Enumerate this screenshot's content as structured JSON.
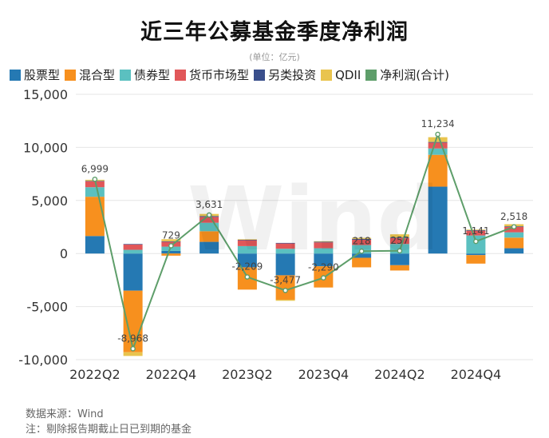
{
  "title": "近三年公募基金季度净利润",
  "subtitle": "(单位：亿元)",
  "source": "数据来源：Wind",
  "note": "注：剔除报告期截止日已到期的基金",
  "watermark": "Wind",
  "chart_data": {
    "type": "bar",
    "stacked": true,
    "title": "近三年公募基金季度净利润",
    "ylabel": "亿元",
    "ylim": [
      -10000,
      15000
    ],
    "yticks": [
      -10000,
      -5000,
      0,
      5000,
      10000,
      15000
    ],
    "ytick_labels": [
      "-10,000",
      "-5,000",
      "0",
      "5,000",
      "10,000",
      "15,000"
    ],
    "categories": [
      "2022Q2",
      "2022Q3",
      "2022Q4",
      "2023Q1",
      "2023Q2",
      "2023Q3",
      "2023Q4",
      "2024Q1",
      "2024Q2",
      "2024Q3",
      "2024Q4",
      "2025Q1"
    ],
    "xtick_labels": [
      "2022Q2",
      "2022Q4",
      "2023Q2",
      "2023Q4",
      "2024Q2",
      "2024Q4"
    ],
    "xtick_index": [
      0,
      2,
      4,
      6,
      8,
      10
    ],
    "legend_position": "top",
    "series": [
      {
        "name": "股票型",
        "color": "#2579b3",
        "values": [
          1650,
          -3500,
          250,
          1100,
          -1300,
          -2050,
          -1200,
          -400,
          -1100,
          6300,
          -150,
          500
        ]
      },
      {
        "name": "混合型",
        "color": "#f7901e",
        "values": [
          3700,
          -5800,
          -200,
          1000,
          -2100,
          -2300,
          -2000,
          -900,
          -500,
          3000,
          -800,
          1000
        ]
      },
      {
        "name": "债券型",
        "color": "#5bc0c0",
        "values": [
          900,
          350,
          400,
          800,
          700,
          450,
          500,
          800,
          900,
          600,
          1700,
          500
        ]
      },
      {
        "name": "货币市场型",
        "color": "#e15759",
        "values": [
          550,
          500,
          450,
          550,
          550,
          500,
          550,
          500,
          550,
          550,
          450,
          500
        ]
      },
      {
        "name": "另类投资",
        "color": "#3a4f8c",
        "values": [
          50,
          50,
          50,
          80,
          50,
          50,
          60,
          80,
          60,
          60,
          60,
          60
        ]
      },
      {
        "name": "QDII",
        "color": "#e9c44e",
        "values": [
          100,
          -350,
          200,
          200,
          50,
          -100,
          50,
          100,
          300,
          450,
          50,
          200
        ]
      }
    ],
    "net_profit": {
      "name": "净利润(合计)",
      "color": "#5e9e6a",
      "values": [
        6999,
        -8968,
        729,
        3631,
        -2209,
        -3477,
        -2290,
        218,
        257,
        11234,
        1141,
        2518
      ],
      "labels": [
        "6,999",
        "-8,968",
        "729",
        "3,631",
        "-2,209",
        "-3,477",
        "-2,290",
        "218",
        "257",
        "11,234",
        "1,141",
        "2,518"
      ]
    }
  }
}
